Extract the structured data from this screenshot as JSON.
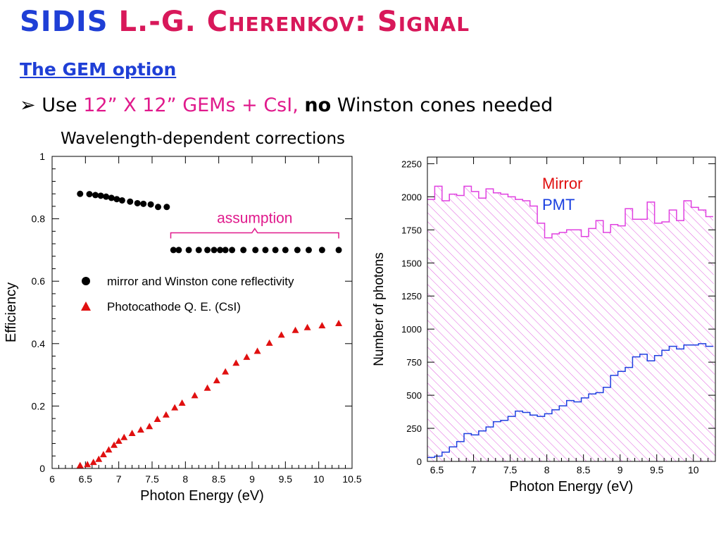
{
  "slide": {
    "title_part1": "SIDIS",
    "title_part2": "L.-G. Cherenkov: Signal",
    "subtitle": "The GEM option",
    "bullet_marker": "➢",
    "bullet_use": "Use",
    "bullet_gems": "12” X 12” GEMs + CsI,",
    "bullet_no": "no",
    "bullet_rest": "Winston cones needed",
    "corrections_label": "Wavelength-dependent corrections"
  },
  "chart_data": [
    {
      "type": "scatter",
      "title": "",
      "xlabel": "Photon Energy (eV)",
      "ylabel": "Efficiency",
      "xlim": [
        6,
        10.5
      ],
      "ylim": [
        0,
        1
      ],
      "x_ticks": [
        "6",
        "6.5",
        "7",
        "7.5",
        "8",
        "8.5",
        "9",
        "9.5",
        "10",
        "10.5"
      ],
      "y_ticks": [
        "0",
        "0.2",
        "0.4",
        "0.6",
        "0.8",
        "1"
      ],
      "annotation": "assumption",
      "legend_position": "middle-left",
      "series": [
        {
          "name": "mirror and Winston cone reflectivity",
          "marker": "circle",
          "color": "#000000",
          "x": [
            6.42,
            6.56,
            6.65,
            6.73,
            6.81,
            6.89,
            6.97,
            7.05,
            7.17,
            7.28,
            7.37,
            7.48,
            7.59,
            7.72,
            7.82,
            7.9,
            8.05,
            8.2,
            8.33,
            8.43,
            8.52,
            8.6,
            8.7,
            8.87,
            9.05,
            9.2,
            9.35,
            9.5,
            9.68,
            9.85,
            10.05,
            10.3
          ],
          "y": [
            0.88,
            0.879,
            0.876,
            0.874,
            0.871,
            0.867,
            0.863,
            0.859,
            0.855,
            0.85,
            0.848,
            0.846,
            0.838,
            0.838,
            0.7,
            0.7,
            0.7,
            0.7,
            0.7,
            0.7,
            0.7,
            0.7,
            0.7,
            0.7,
            0.7,
            0.7,
            0.7,
            0.7,
            0.7,
            0.7,
            0.7,
            0.7
          ]
        },
        {
          "name": "Photocathode Q. E. (CsI)",
          "marker": "triangle",
          "color": "#e01010",
          "x": [
            6.42,
            6.53,
            6.62,
            6.7,
            6.77,
            6.85,
            6.93,
            7.0,
            7.08,
            7.2,
            7.33,
            7.46,
            7.58,
            7.71,
            7.84,
            7.95,
            8.14,
            8.33,
            8.47,
            8.6,
            8.76,
            8.92,
            9.08,
            9.26,
            9.44,
            9.65,
            9.83,
            10.05,
            10.3
          ],
          "y": [
            0.01,
            0.013,
            0.02,
            0.03,
            0.045,
            0.06,
            0.075,
            0.088,
            0.1,
            0.113,
            0.124,
            0.135,
            0.158,
            0.172,
            0.195,
            0.21,
            0.234,
            0.258,
            0.282,
            0.31,
            0.338,
            0.357,
            0.376,
            0.402,
            0.428,
            0.443,
            0.452,
            0.458,
            0.465
          ]
        }
      ]
    },
    {
      "type": "area",
      "title": "",
      "xlabel": "Photon Energy (eV)",
      "ylabel": "Number of photons",
      "xlim": [
        6.37,
        10.3
      ],
      "ylim": [
        0,
        2300
      ],
      "x_ticks": [
        "6.5",
        "7",
        "7.5",
        "8",
        "8.5",
        "9",
        "9.5",
        "10"
      ],
      "y_ticks": [
        "0",
        "250",
        "500",
        "750",
        "1000",
        "1250",
        "1500",
        "1750",
        "2000",
        "2250"
      ],
      "bin_width": 0.1,
      "bin_start": 6.37,
      "legend_position": "top-right",
      "series": [
        {
          "name": "Mirror",
          "label_color": "#e01010",
          "color": "#e040e0",
          "values": [
            1980,
            2080,
            1970,
            2020,
            2010,
            2080,
            2040,
            1990,
            2060,
            2030,
            2020,
            2000,
            1980,
            1970,
            1930,
            1800,
            1690,
            1720,
            1730,
            1750,
            1750,
            1700,
            1760,
            1820,
            1730,
            1790,
            1780,
            1910,
            1830,
            1830,
            1960,
            1800,
            1810,
            1900,
            1820,
            1970,
            1920,
            1900,
            1850
          ]
        },
        {
          "name": "PMT",
          "label_color": "#1a3fe0",
          "color": "#2040e0",
          "values": [
            30,
            40,
            70,
            110,
            150,
            210,
            200,
            230,
            260,
            300,
            310,
            340,
            380,
            370,
            350,
            340,
            360,
            390,
            420,
            460,
            450,
            480,
            510,
            520,
            560,
            650,
            680,
            710,
            790,
            810,
            760,
            800,
            840,
            870,
            850,
            880,
            880,
            890,
            870
          ]
        }
      ]
    }
  ]
}
